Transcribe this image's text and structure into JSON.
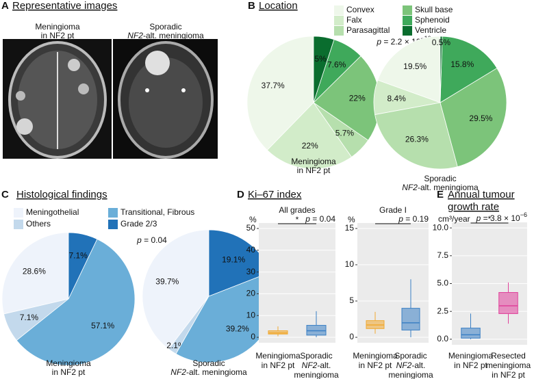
{
  "figure": {
    "panels": [
      {
        "letter": "A",
        "title": "Representative images"
      },
      {
        "letter": "B",
        "title": "Location",
        "p_value": {
          "symbol": "p",
          "text": " = 2.2 × 10",
          "exponent": "−16"
        }
      },
      {
        "letter": "C",
        "title": "Histological findings",
        "p_value": {
          "symbol": "p",
          "text": " = 0.04"
        }
      },
      {
        "letter": "D",
        "title": "Ki–67 index"
      },
      {
        "letter": "E",
        "title_lines": [
          "Annual tumour",
          "growth rate"
        ]
      }
    ],
    "images": [
      {
        "lines": [
          [
            "Meningioma"
          ],
          [
            "in NF2 pt"
          ]
        ]
      },
      {
        "lines": [
          [
            "Sporadic"
          ],
          [
            "NF2",
            "-alt. meningioma"
          ]
        ]
      }
    ]
  },
  "chart_data": [
    {
      "type": "pie",
      "label_lines": [
        [
          "Meningioma"
        ],
        [
          "in NF2 pt"
        ]
      ],
      "categories": [
        "Convex",
        "Falx",
        "Parasagittal",
        "Skull base",
        "Sphenoid",
        "Ventricle"
      ],
      "colors": [
        "#eef7ea",
        "#d2ecc9",
        "#b6dfad",
        "#7cc47a",
        "#3fa95b",
        "#0a6d2e"
      ],
      "values": [
        37.7,
        22,
        5.7,
        22,
        7.6,
        5
      ],
      "value_labels": [
        "37.7%",
        "22%",
        "5.7%",
        "22%",
        "7.6%",
        "5%"
      ]
    },
    {
      "type": "pie",
      "label_lines": [
        [
          "Sporadic"
        ],
        [
          "NF2",
          "-alt. meningioma"
        ]
      ],
      "categories": [
        "Convex",
        "Falx",
        "Parasagittal",
        "Skull base",
        "Sphenoid",
        "Ventricle"
      ],
      "colors": [
        "#eef7ea",
        "#d2ecc9",
        "#b6dfad",
        "#7cc47a",
        "#3fa95b",
        "#0a6d2e"
      ],
      "values": [
        19.5,
        8.4,
        26.3,
        29.5,
        15.8,
        0.5
      ],
      "value_labels": [
        "19.5%",
        "8.4%",
        "26.3%",
        "29.5%",
        "15.8%",
        "0.5%"
      ]
    },
    {
      "type": "pie",
      "label_lines": [
        [
          "Meningioma"
        ],
        [
          "in NF2 pt"
        ]
      ],
      "categories": [
        "Meningothelial",
        "Others",
        "Transitional, Fibrous",
        "Grade 2/3"
      ],
      "colors": [
        "#eef3fb",
        "#c3d9ec",
        "#6aaed8",
        "#2172b8"
      ],
      "values": [
        28.6,
        7.1,
        57.1,
        7.1
      ],
      "value_labels": [
        "28.6%",
        "7.1%",
        "57.1%",
        "7.1%"
      ]
    },
    {
      "type": "pie",
      "label_lines": [
        [
          "Sporadic"
        ],
        [
          "NF2",
          "-alt. meningioma"
        ]
      ],
      "categories": [
        "Meningothelial",
        "Others",
        "Transitional, Fibrous",
        "Grade 2/3"
      ],
      "colors": [
        "#eef3fb",
        "#c3d9ec",
        "#6aaed8",
        "#2172b8"
      ],
      "values": [
        39.7,
        2.1,
        39.2,
        19.1
      ],
      "value_labels": [
        "39.7%",
        "2.1%",
        "39.2%",
        "19.1%"
      ]
    },
    {
      "type": "box",
      "title": "All grades",
      "y_label": "%",
      "ylim": [
        -2.5,
        52.5
      ],
      "yticks": [
        0,
        10,
        20,
        30,
        40,
        50
      ],
      "categories": [
        [
          [
            "Meningioma"
          ],
          [
            "in NF2 pt"
          ]
        ],
        [
          [
            "Sporadic"
          ],
          [
            "NF2",
            "-alt."
          ],
          [
            "meningioma"
          ]
        ]
      ],
      "boxes": [
        {
          "min": 0.5,
          "q1": 1.5,
          "median": 2,
          "q3": 3,
          "max": 5,
          "color": "#f0a830"
        },
        {
          "min": 0,
          "q1": 1,
          "median": 3,
          "q3": 5.5,
          "max": 12,
          "color": "#3a7fc4"
        }
      ],
      "significance": {
        "stars": "*",
        "p_value": {
          "symbol": "p",
          "text": " = 0.04"
        }
      }
    },
    {
      "type": "box",
      "title": "Grade I",
      "y_label": "%",
      "ylim": [
        -0.75,
        15.75
      ],
      "yticks": [
        0,
        5,
        10,
        15
      ],
      "categories": [
        [
          [
            "Meningioma"
          ],
          [
            "in NF2 pt"
          ]
        ],
        [
          [
            "Sporadic"
          ],
          [
            "NF2",
            "-alt."
          ],
          [
            "meningioma"
          ]
        ]
      ],
      "boxes": [
        {
          "min": 0.5,
          "q1": 1.2,
          "median": 1.7,
          "q3": 2.3,
          "max": 3.5,
          "color": "#f0a830"
        },
        {
          "min": 0,
          "q1": 1,
          "median": 2,
          "q3": 4,
          "max": 8,
          "color": "#3a7fc4"
        }
      ],
      "significance": {
        "p_value": {
          "symbol": "p",
          "text": " = 0.19"
        }
      }
    },
    {
      "type": "box",
      "y_label": "cm³/year",
      "ylim": [
        -0.5,
        10.5
      ],
      "yticks": [
        {
          "value": 0,
          "label": "0.0"
        },
        {
          "value": 2.5,
          "label": "2.5"
        },
        {
          "value": 5,
          "label": "5.0"
        },
        {
          "value": 7.5,
          "label": "7.5"
        },
        {
          "value": 10,
          "label": "10.0"
        }
      ],
      "categories": [
        [
          [
            "Meningioma"
          ],
          [
            "in NF2 pt"
          ]
        ],
        [
          [
            "Resected"
          ],
          [
            "meningioma"
          ],
          [
            "in NF2 pt"
          ]
        ]
      ],
      "boxes": [
        {
          "min": 0,
          "q1": 0.1,
          "median": 0.4,
          "q3": 1.0,
          "max": 2.3,
          "color": "#3a7fc4"
        },
        {
          "min": 1.4,
          "q1": 2.3,
          "median": 3.0,
          "q3": 4.2,
          "max": 5.1,
          "color": "#e0409a"
        }
      ],
      "significance": {
        "stars": "*",
        "p_value": {
          "symbol": "p",
          "text": " = 3.8 × 10",
          "exponent": "−6"
        }
      }
    }
  ]
}
